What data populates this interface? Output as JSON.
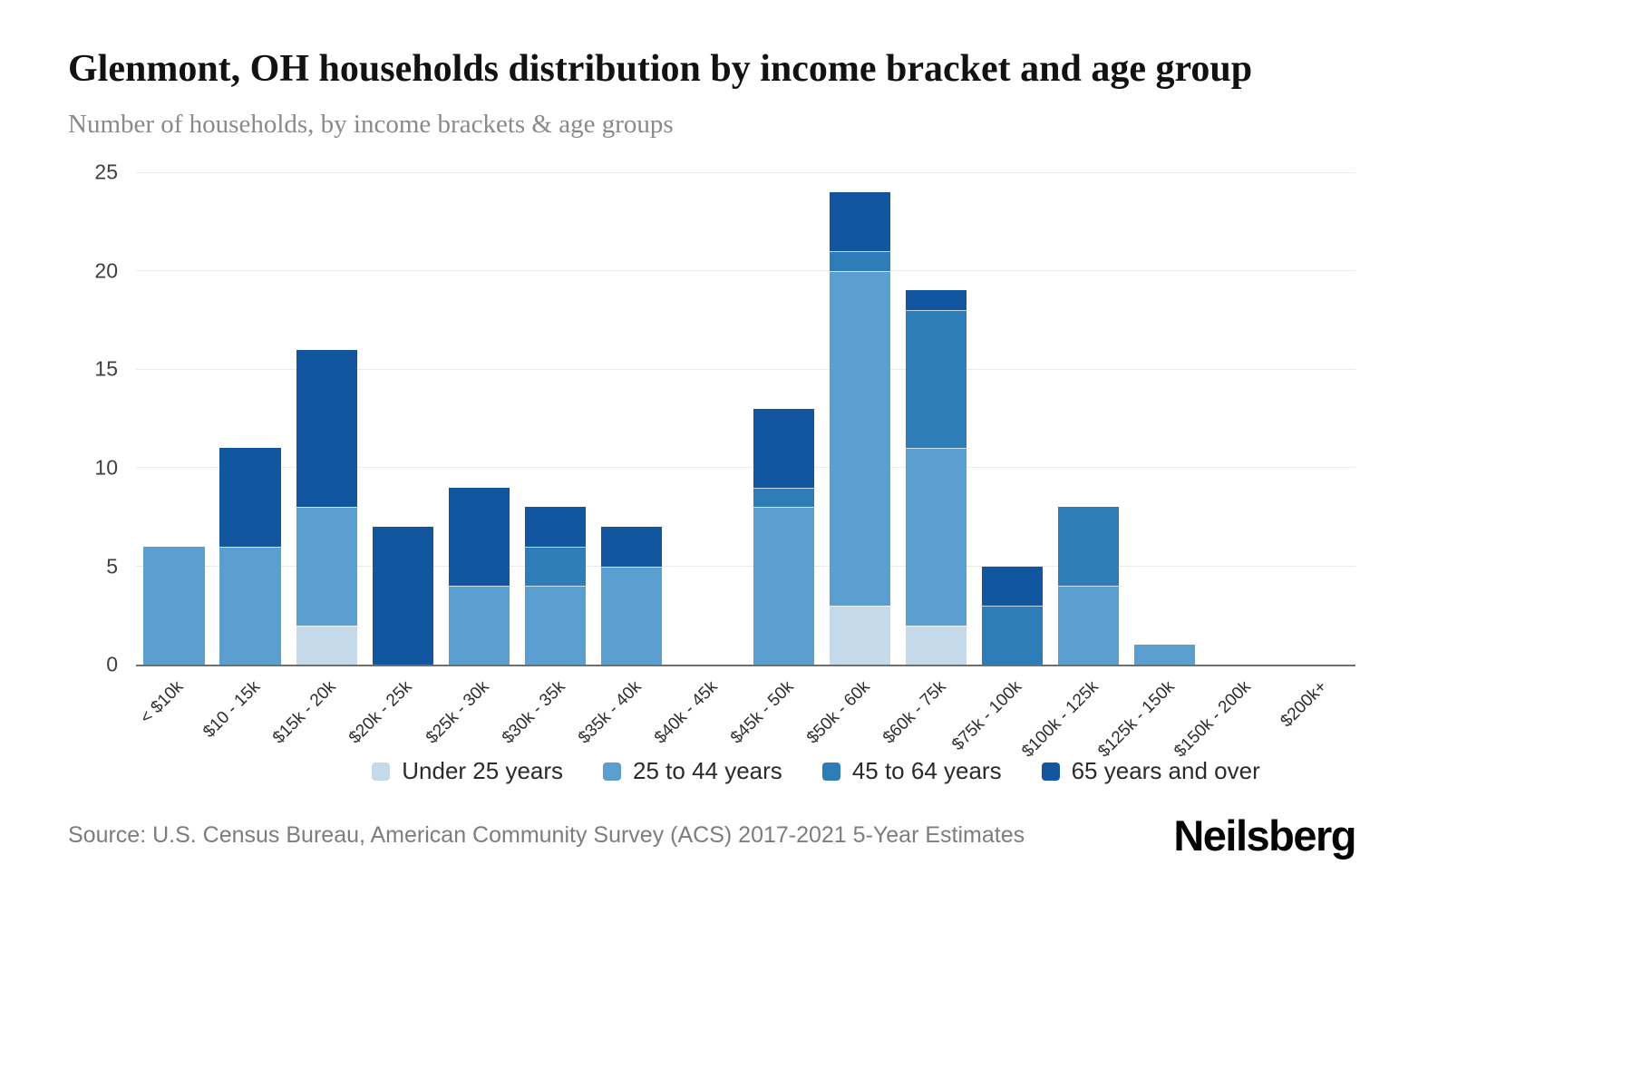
{
  "header": {
    "title": "Glenmont, OH households distribution by income bracket and age group",
    "subtitle": "Number of households, by income brackets & age groups"
  },
  "chart_data": {
    "type": "bar",
    "stacked": true,
    "title": "Glenmont, OH households distribution by income bracket and age group",
    "xlabel": "",
    "ylabel": "Number of households",
    "ylim": [
      0,
      25
    ],
    "yticks": [
      0,
      5,
      10,
      15,
      20,
      25
    ],
    "grid": "horizontal",
    "legend_position": "bottom",
    "categories": [
      "< $10k",
      "$10 - 15k",
      "$15k - 20k",
      "$20k - 25k",
      "$25k - 30k",
      "$30k - 35k",
      "$35k - 40k",
      "$40k - 45k",
      "$45k - 50k",
      "$50k - 60k",
      "$60k - 75k",
      "$75k - 100k",
      "$100k - 125k",
      "$125k - 150k",
      "$150k - 200k",
      "$200k+"
    ],
    "series": [
      {
        "name": "Under 25 years",
        "color": "#c4daea",
        "values": [
          0,
          0,
          2,
          0,
          0,
          0,
          0,
          0,
          0,
          3,
          2,
          0,
          0,
          0,
          0,
          0
        ]
      },
      {
        "name": "25 to 44 years",
        "color": "#5b9fd0",
        "values": [
          6,
          6,
          6,
          0,
          4,
          4,
          5,
          0,
          8,
          17,
          9,
          0,
          4,
          1,
          0,
          0
        ]
      },
      {
        "name": "45 to 64 years",
        "color": "#2e7cb8",
        "values": [
          0,
          0,
          0,
          0,
          0,
          2,
          0,
          0,
          1,
          1,
          7,
          3,
          4,
          0,
          0,
          0
        ]
      },
      {
        "name": "65 years and over",
        "color": "#11569f",
        "values": [
          0,
          5,
          8,
          7,
          5,
          2,
          2,
          0,
          4,
          3,
          1,
          2,
          0,
          0,
          0,
          0
        ]
      }
    ],
    "totals": [
      6,
      11,
      16,
      7,
      9,
      8,
      7,
      0,
      13,
      24,
      19,
      5,
      8,
      1,
      0,
      0
    ]
  },
  "footer": {
    "source": "Source: U.S. Census Bureau, American Community Survey (ACS) 2017-2021 5-Year Estimates",
    "brand": "Neilsberg"
  }
}
